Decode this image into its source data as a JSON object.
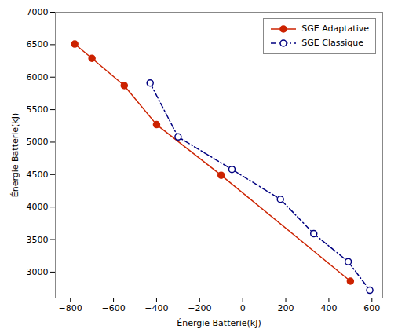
{
  "chart_data": {
    "type": "line",
    "xlabel": "Énergie Batterie(kJ)",
    "ylabel": "Énergie Batterie(kJ)",
    "xlim": [
      -870,
      650
    ],
    "ylim": [
      2600,
      7000
    ],
    "xticks": [
      -800,
      -600,
      -400,
      -200,
      0,
      200,
      400,
      600
    ],
    "yticks": [
      3000,
      3500,
      4000,
      4500,
      5000,
      5500,
      6000,
      6500,
      7000
    ],
    "grid": false,
    "legend": "upper right",
    "series": [
      {
        "name": "SGE Adaptative",
        "color": "#cc2200",
        "marker": "circle",
        "line_style": "solid",
        "x": [
          -780,
          -700,
          -550,
          -400,
          -100,
          500
        ],
        "values": [
          6510,
          6290,
          5870,
          5270,
          4490,
          2860
        ]
      },
      {
        "name": "SGE Classique",
        "color": "#000080",
        "marker": "open circle",
        "line_style": "dashdot",
        "x": [
          -430,
          -300,
          -50,
          175,
          330,
          490,
          590
        ],
        "values": [
          5910,
          5080,
          4580,
          4120,
          3590,
          3160,
          2720
        ]
      }
    ]
  }
}
